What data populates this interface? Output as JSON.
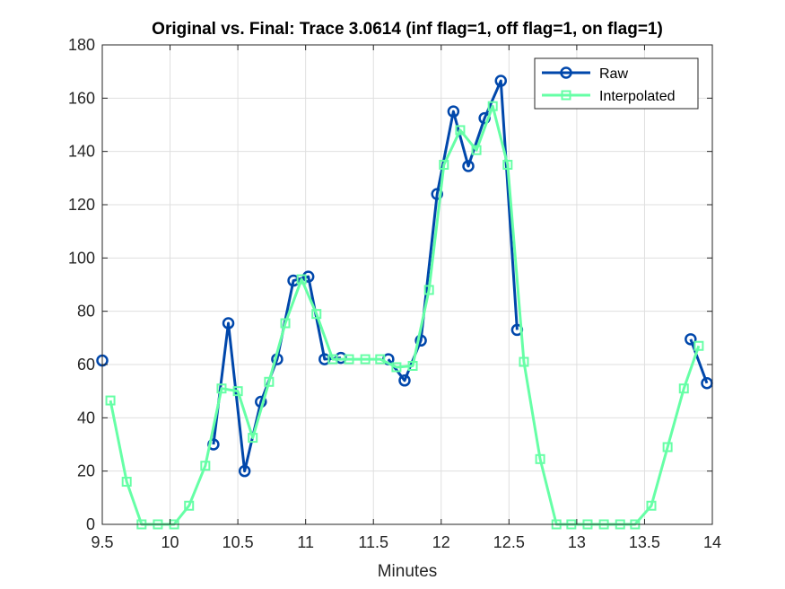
{
  "chart_data": {
    "type": "line",
    "title": "Original vs. Final: Trace 3.0614 (inf flag=1, off flag=1, on flag=1)",
    "xlabel": "Minutes",
    "ylabel": "",
    "xlim": [
      9.5,
      14
    ],
    "ylim": [
      0,
      180
    ],
    "xticks": [
      9.5,
      10,
      10.5,
      11,
      11.5,
      12,
      12.5,
      13,
      13.5,
      14
    ],
    "xtick_labels": [
      "9.5",
      "10",
      "10.5",
      "11",
      "11.5",
      "12",
      "12.5",
      "13",
      "13.5",
      "14"
    ],
    "yticks": [
      0,
      20,
      40,
      60,
      80,
      100,
      120,
      140,
      160,
      180
    ],
    "ytick_labels": [
      "0",
      "20",
      "40",
      "60",
      "80",
      "100",
      "120",
      "140",
      "160",
      "180"
    ],
    "grid": true,
    "legend_position": "top-right",
    "series": [
      {
        "name": "Raw",
        "color": "#0047AB",
        "marker": "circle",
        "segments": [
          [
            [
              9.5,
              61.5
            ]
          ],
          [
            [
              10.32,
              30
            ],
            [
              10.43,
              75.5
            ],
            [
              10.55,
              20
            ],
            [
              10.67,
              46
            ],
            [
              10.79,
              62
            ],
            [
              10.91,
              91.5
            ],
            [
              11.02,
              93
            ],
            [
              11.14,
              62
            ],
            [
              11.26,
              62.5
            ]
          ],
          [
            [
              11.61,
              62
            ],
            [
              11.73,
              54
            ],
            [
              11.85,
              69
            ],
            [
              11.97,
              124
            ],
            [
              12.09,
              155
            ],
            [
              12.2,
              134.5
            ],
            [
              12.32,
              152.5
            ],
            [
              12.44,
              166.5
            ],
            [
              12.56,
              73
            ]
          ],
          [
            [
              13.84,
              69.5
            ],
            [
              13.96,
              53
            ]
          ]
        ]
      },
      {
        "name": "Interpolated",
        "color": "#66FFA6",
        "marker": "square",
        "points": [
          [
            9.56,
            46.5
          ],
          [
            9.68,
            16
          ],
          [
            9.79,
            0
          ],
          [
            9.91,
            0
          ],
          [
            10.03,
            0
          ],
          [
            10.14,
            7
          ],
          [
            10.26,
            22
          ],
          [
            10.38,
            51
          ],
          [
            10.5,
            50
          ],
          [
            10.61,
            32.5
          ],
          [
            10.73,
            53.5
          ],
          [
            10.85,
            75.5
          ],
          [
            10.97,
            92
          ],
          [
            11.08,
            79
          ],
          [
            11.2,
            62
          ],
          [
            11.32,
            62
          ],
          [
            11.44,
            62
          ],
          [
            11.55,
            62
          ],
          [
            11.67,
            59
          ],
          [
            11.79,
            59.5
          ],
          [
            11.91,
            88
          ],
          [
            12.02,
            135
          ],
          [
            12.14,
            148
          ],
          [
            12.26,
            140.5
          ],
          [
            12.38,
            157
          ],
          [
            12.49,
            135
          ],
          [
            12.61,
            61
          ],
          [
            12.73,
            24.5
          ],
          [
            12.85,
            0
          ],
          [
            12.96,
            0
          ],
          [
            13.08,
            0
          ],
          [
            13.2,
            0
          ],
          [
            13.32,
            0
          ],
          [
            13.43,
            0
          ],
          [
            13.55,
            7
          ],
          [
            13.67,
            29
          ],
          [
            13.79,
            51
          ],
          [
            13.9,
            67
          ]
        ]
      }
    ]
  }
}
